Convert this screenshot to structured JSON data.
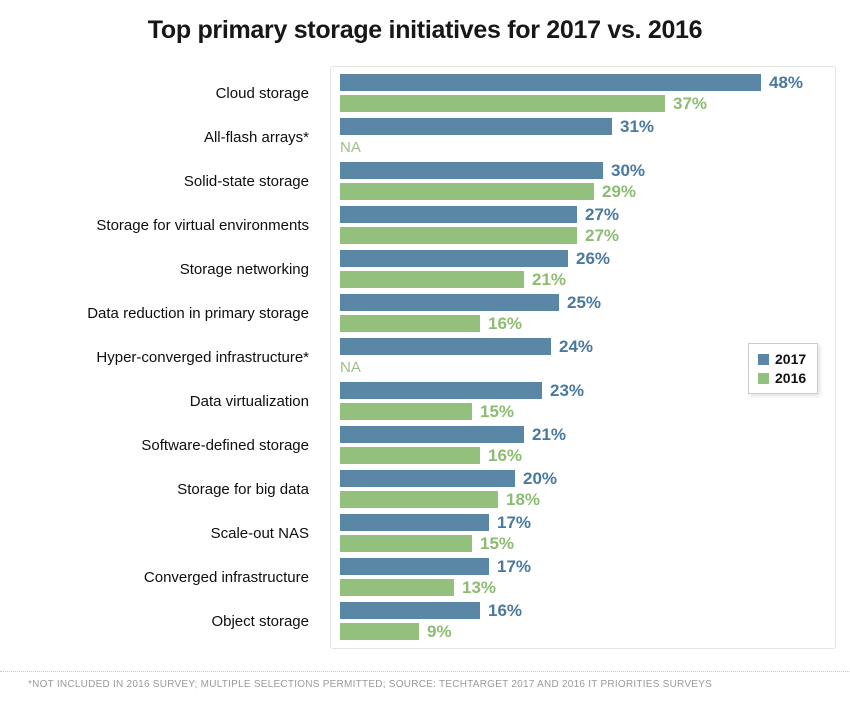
{
  "title": "Top primary storage initiatives for 2017 vs. 2016",
  "footnote": "*NOT INCLUDED IN 2016 SURVEY; MULTIPLE SELECTIONS PERMITTED; SOURCE: TECHTARGET 2017 AND 2016 IT PRIORITIES SURVEYS",
  "colors": {
    "bar_2017": "#5b87a7",
    "bar_2016": "#93c07c",
    "value_text_2017": "#49799f",
    "value_text_2016": "#8cbc72",
    "na_text": "#9fbd88"
  },
  "legend": {
    "items": [
      {
        "label": "2017",
        "color": "#5b87a7"
      },
      {
        "label": "2016",
        "color": "#93c07c"
      }
    ]
  },
  "chart_data": {
    "type": "bar",
    "orientation": "horizontal",
    "title": "Top primary storage initiatives for 2017 vs. 2016",
    "value_suffix": "%",
    "na_label": "NA",
    "xlim": [
      0,
      48
    ],
    "grid": false,
    "legend_position": "right",
    "categories": [
      "Cloud storage",
      "All-flash arrays*",
      "Solid-state storage",
      "Storage for virtual environments",
      "Storage networking",
      "Data reduction in primary storage",
      "Hyper-converged infrastructure*",
      "Data virtualization",
      "Software-defined storage",
      "Storage for big data",
      "Scale-out NAS",
      "Converged infrastructure",
      "Object storage"
    ],
    "series": [
      {
        "name": "2017",
        "values": [
          48,
          31,
          30,
          27,
          26,
          25,
          24,
          23,
          21,
          20,
          17,
          17,
          16
        ]
      },
      {
        "name": "2016",
        "values": [
          37,
          null,
          29,
          27,
          21,
          16,
          null,
          15,
          16,
          18,
          15,
          13,
          9
        ]
      }
    ]
  }
}
